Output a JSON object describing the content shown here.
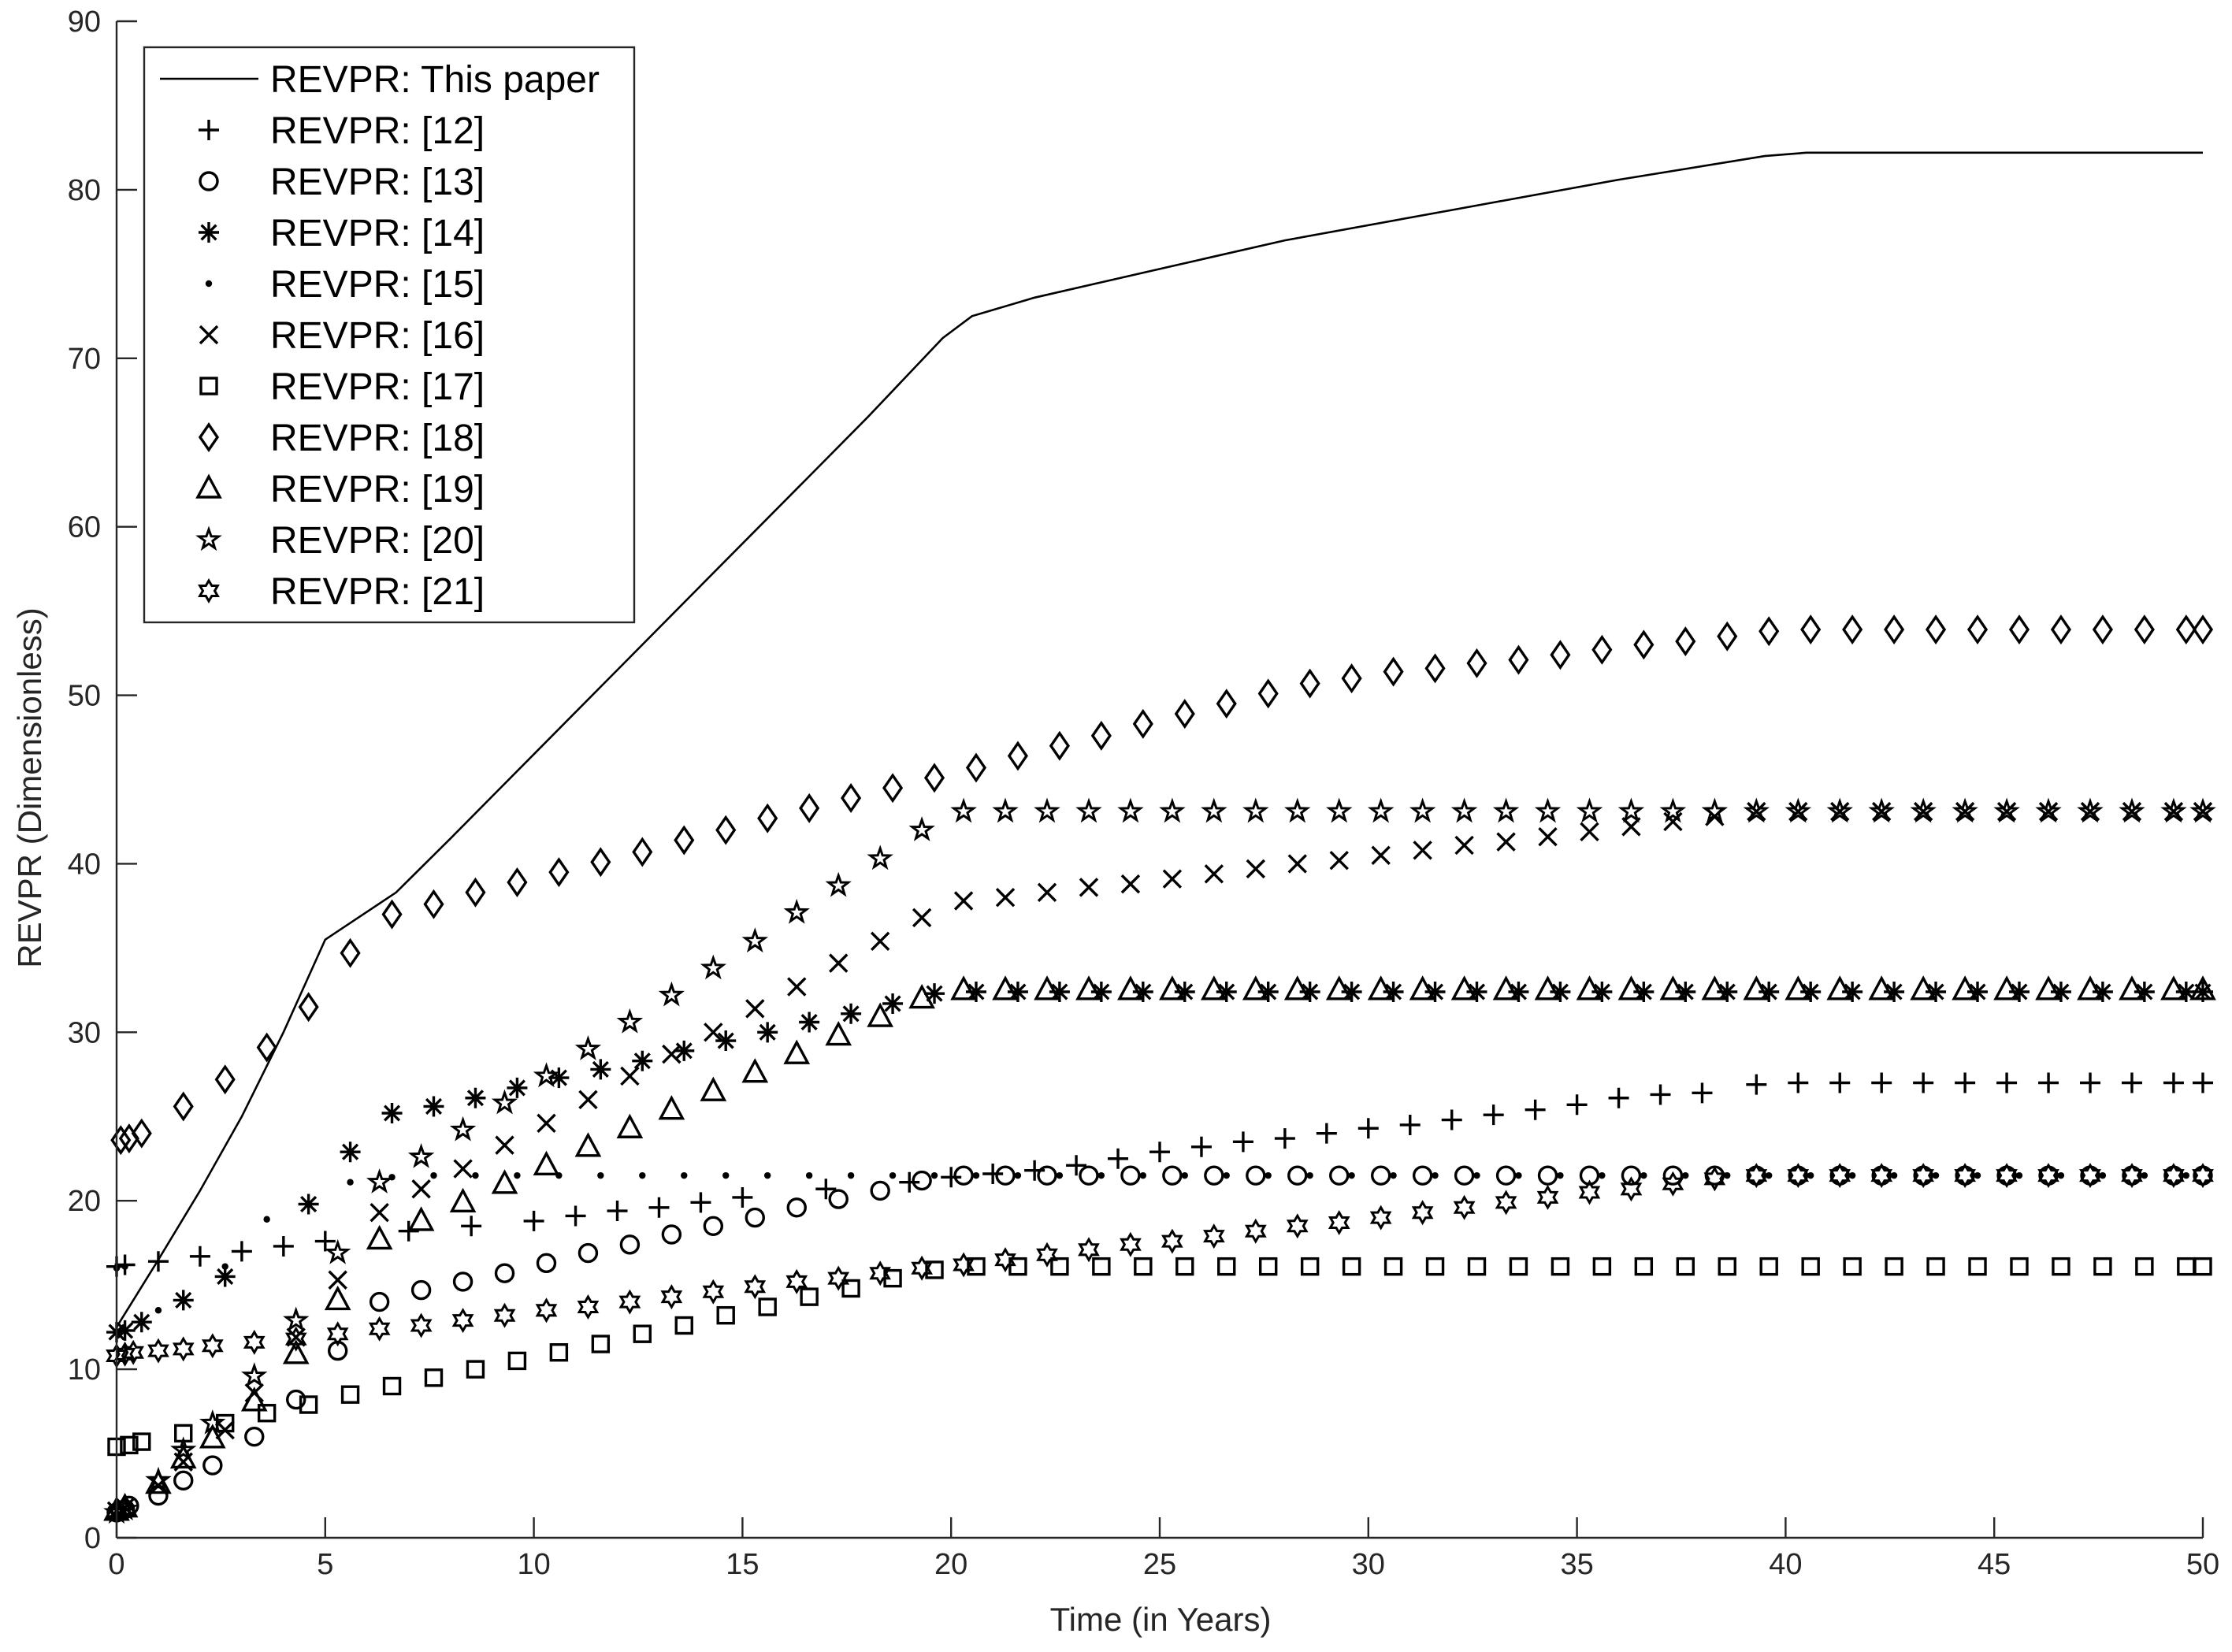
{
  "chart_data": {
    "type": "line",
    "title": "",
    "xlabel": "Time (in Years)",
    "ylabel": "REVPR (Dimensionless)",
    "xlim": [
      0,
      50
    ],
    "ylim": [
      0,
      90
    ],
    "xticks": [
      0,
      5,
      10,
      15,
      20,
      25,
      30,
      35,
      40,
      45,
      50
    ],
    "yticks": [
      0,
      10,
      20,
      30,
      40,
      50,
      60,
      70,
      80,
      90
    ],
    "grid": false,
    "legend_position": "top-left",
    "series": [
      {
        "name": "REVPR: This paper",
        "marker": "line",
        "x": [
          0,
          1,
          2,
          3,
          4,
          5,
          6.7,
          8,
          10,
          12,
          14,
          16,
          18,
          19.8,
          20.5,
          22,
          25,
          28,
          32,
          36,
          39.5,
          40.5,
          50
        ],
        "y": [
          12.5,
          16.5,
          20.6,
          25,
          30,
          35.5,
          38.3,
          41.5,
          46.5,
          51.5,
          56.5,
          61.5,
          66.5,
          71.2,
          72.5,
          73.6,
          75.3,
          77,
          78.8,
          80.6,
          82,
          82.2,
          82.2
        ]
      },
      {
        "name": "REVPR: [12]",
        "marker": "plus",
        "x": [
          0,
          0.2,
          1,
          2,
          3,
          4,
          5,
          7,
          8.5,
          10,
          11,
          12,
          13,
          14,
          15,
          17,
          19,
          20,
          21,
          22,
          23,
          24,
          25,
          26,
          27,
          28,
          29,
          30,
          31,
          32,
          33,
          34,
          35,
          36,
          37,
          38,
          39.3,
          40.3,
          41.3,
          42.3,
          43.3,
          44.3,
          45.3,
          46.3,
          47.3,
          48.3,
          49.3,
          50
        ],
        "y": [
          16.1,
          16.2,
          16.4,
          16.7,
          17,
          17.3,
          17.6,
          18.2,
          18.5,
          18.8,
          19.1,
          19.4,
          19.6,
          19.9,
          20.2,
          20.7,
          21.1,
          21.4,
          21.6,
          21.8,
          22.1,
          22.5,
          22.9,
          23.2,
          23.5,
          23.7,
          24,
          24.3,
          24.5,
          24.8,
          25.1,
          25.4,
          25.7,
          26.1,
          26.3,
          26.4,
          26.9,
          27,
          27,
          27,
          27,
          27,
          27,
          27,
          27,
          27,
          27,
          27
        ]
      },
      {
        "name": "REVPR: [13]",
        "marker": "circle",
        "x": [
          0,
          0.1,
          0.2,
          0.3,
          1,
          1.6,
          2.3,
          3.3,
          4.3,
          5.3,
          6.3,
          7.3,
          8.3,
          9.3,
          10.3,
          11.3,
          12.3,
          13.3,
          14.3,
          15.3,
          16.3,
          17.3,
          18.3,
          19.3,
          20.3,
          21.3,
          22.3,
          23.3,
          24.3,
          25.3,
          26.3,
          27.3,
          28.3,
          29.3,
          30.3,
          31.3,
          32.3,
          33.3,
          34.3,
          35.3,
          36.3,
          37.3,
          38.3,
          39.3,
          40.3,
          41.3,
          42.3,
          43.3,
          44.3,
          45.3,
          46.3,
          47.3,
          48.3,
          49.3,
          50
        ],
        "y": [
          1.5,
          1.6,
          1.7,
          1.9,
          2.5,
          3.4,
          4.3,
          6,
          8.2,
          11.1,
          14,
          14.7,
          15.2,
          15.7,
          16.3,
          16.9,
          17.4,
          18,
          18.5,
          19,
          19.6,
          20.1,
          20.6,
          21.2,
          21.5,
          21.5,
          21.5,
          21.5,
          21.5,
          21.5,
          21.5,
          21.5,
          21.5,
          21.5,
          21.5,
          21.5,
          21.5,
          21.5,
          21.5,
          21.5,
          21.5,
          21.5,
          21.5,
          21.5,
          21.5,
          21.5,
          21.5,
          21.5,
          21.5,
          21.5,
          21.5,
          21.5,
          21.5,
          21.5,
          21.5
        ]
      },
      {
        "name": "REVPR: [14]",
        "marker": "asterisk",
        "x": [
          0,
          0.2,
          0.6,
          1.6,
          2.6,
          4.6,
          5.6,
          6.6,
          7.6,
          8.6,
          9.6,
          10.6,
          11.6,
          12.6,
          13.6,
          14.6,
          15.6,
          16.6,
          17.6,
          18.6,
          19.6,
          20.6,
          21.6,
          22.6,
          23.6,
          24.6,
          25.6,
          26.6,
          27.6,
          28.6,
          29.6,
          30.6,
          31.6,
          32.6,
          33.6,
          34.6,
          35.6,
          36.6,
          37.6,
          38.6,
          39.6,
          40.6,
          41.6,
          42.6,
          43.6,
          44.6,
          45.6,
          46.6,
          47.6,
          48.6,
          49.6,
          50
        ],
        "y": [
          12.2,
          12.3,
          12.8,
          14.1,
          15.5,
          19.8,
          22.9,
          25.2,
          25.6,
          26.1,
          26.7,
          27.3,
          27.8,
          28.3,
          28.9,
          29.5,
          30,
          30.6,
          31.1,
          31.7,
          32.3,
          32.4,
          32.4,
          32.4,
          32.4,
          32.4,
          32.4,
          32.4,
          32.4,
          32.4,
          32.4,
          32.4,
          32.4,
          32.4,
          32.4,
          32.4,
          32.4,
          32.4,
          32.4,
          32.4,
          32.4,
          32.4,
          32.4,
          32.4,
          32.4,
          32.4,
          32.4,
          32.4,
          32.4,
          32.4,
          32.4,
          32.4
        ]
      },
      {
        "name": "REVPR: [15]",
        "marker": "dot",
        "x": [
          0,
          0.2,
          1,
          2.6,
          3.6,
          5.6,
          6.6,
          7.6,
          8.6,
          9.6,
          10.6,
          11.6,
          12.6,
          13.6,
          14.6,
          15.6,
          16.6,
          17.6,
          18.6,
          19.6,
          20.6,
          21.6,
          22.6,
          23.6,
          24.6,
          25.6,
          26.6,
          27.6,
          28.6,
          29.6,
          30.6,
          31.6,
          32.6,
          33.6,
          34.6,
          35.6,
          36.6,
          37.6,
          38.6,
          39.6,
          40.6,
          41.6,
          42.6,
          43.6,
          44.6,
          45.6,
          46.6,
          47.6,
          48.6,
          49.6
        ],
        "y": [
          16,
          16.1,
          13.5,
          16.1,
          18.9,
          21.1,
          21.4,
          21.5,
          21.5,
          21.5,
          21.5,
          21.5,
          21.5,
          21.5,
          21.5,
          21.5,
          21.5,
          21.5,
          21.5,
          21.5,
          21.5,
          21.5,
          21.5,
          21.5,
          21.5,
          21.5,
          21.5,
          21.5,
          21.5,
          21.5,
          21.5,
          21.5,
          21.5,
          21.5,
          21.5,
          21.5,
          21.5,
          21.5,
          21.5,
          21.5,
          21.5,
          21.5,
          21.5,
          21.5,
          21.5,
          21.5,
          21.5,
          21.5,
          21.5,
          21.5
        ]
      },
      {
        "name": "REVPR: [16]",
        "marker": "x",
        "x": [
          0,
          0.2,
          1,
          1.6,
          2.6,
          3.3,
          4.3,
          5.3,
          6.3,
          7.3,
          8.3,
          9.3,
          10.3,
          11.3,
          12.3,
          13.3,
          14.3,
          15.3,
          16.3,
          17.3,
          18.3,
          19.3,
          20.3,
          21.3,
          22.3,
          23.3,
          24.3,
          25.3,
          26.3,
          27.3,
          28.3,
          29.3,
          30.3,
          31.3,
          32.3,
          33.3,
          34.3,
          35.3,
          36.3,
          37.3,
          38.3,
          39.3,
          40.3,
          41.3,
          42.3,
          43.3,
          44.3,
          45.3,
          46.3,
          47.3,
          48.3,
          49.3,
          50
        ],
        "y": [
          1.6,
          1.8,
          3.1,
          4.5,
          6.4,
          8.6,
          11.9,
          15.3,
          19.3,
          20.7,
          21.9,
          23.3,
          24.6,
          26,
          27.4,
          28.7,
          30,
          31.4,
          32.7,
          34.1,
          35.4,
          36.8,
          37.8,
          38,
          38.3,
          38.6,
          38.8,
          39.1,
          39.4,
          39.7,
          40,
          40.2,
          40.5,
          40.8,
          41.1,
          41.3,
          41.6,
          41.9,
          42.2,
          42.5,
          42.8,
          43.1,
          43.1,
          43.1,
          43.1,
          43.1,
          43.1,
          43.1,
          43.1,
          43.1,
          43.1,
          43.1,
          43.1
        ]
      },
      {
        "name": "REVPR: [17]",
        "marker": "square",
        "x": [
          0,
          0.3,
          0.6,
          1.6,
          2.6,
          3.6,
          4.6,
          5.6,
          6.6,
          7.6,
          8.6,
          9.6,
          10.6,
          11.6,
          12.6,
          13.6,
          14.6,
          15.6,
          16.6,
          17.6,
          18.6,
          19.6,
          20.6,
          21.6,
          22.6,
          23.6,
          24.6,
          25.6,
          26.6,
          27.6,
          28.6,
          29.6,
          30.6,
          31.6,
          32.6,
          33.6,
          34.6,
          35.6,
          36.6,
          37.6,
          38.6,
          39.6,
          40.6,
          41.6,
          42.6,
          43.6,
          44.6,
          45.6,
          46.6,
          47.6,
          48.6,
          49.6,
          50
        ],
        "y": [
          5.4,
          5.5,
          5.7,
          6.2,
          6.8,
          7.4,
          7.9,
          8.5,
          9,
          9.5,
          10,
          10.5,
          11,
          11.5,
          12.1,
          12.6,
          13.2,
          13.7,
          14.3,
          14.8,
          15.4,
          15.9,
          16.1,
          16.1,
          16.1,
          16.1,
          16.1,
          16.1,
          16.1,
          16.1,
          16.1,
          16.1,
          16.1,
          16.1,
          16.1,
          16.1,
          16.1,
          16.1,
          16.1,
          16.1,
          16.1,
          16.1,
          16.1,
          16.1,
          16.1,
          16.1,
          16.1,
          16.1,
          16.1,
          16.1,
          16.1,
          16.1,
          16.1
        ]
      },
      {
        "name": "REVPR: [18]",
        "marker": "diamond",
        "x": [
          0.1,
          0.3,
          0.6,
          1.6,
          2.6,
          3.6,
          4.6,
          5.6,
          6.6,
          7.6,
          8.6,
          9.6,
          10.6,
          11.6,
          12.6,
          13.6,
          14.6,
          15.6,
          16.6,
          17.6,
          18.6,
          19.6,
          20.6,
          21.6,
          22.6,
          23.6,
          24.6,
          25.6,
          26.6,
          27.6,
          28.6,
          29.6,
          30.6,
          31.6,
          32.6,
          33.6,
          34.6,
          35.6,
          36.6,
          37.6,
          38.6,
          39.6,
          40.6,
          41.6,
          42.6,
          43.6,
          44.6,
          45.6,
          46.6,
          47.6,
          48.6,
          49.6,
          50
        ],
        "y": [
          23.6,
          23.7,
          24,
          25.6,
          27.2,
          29.1,
          31.5,
          34.7,
          37,
          37.6,
          38.3,
          38.9,
          39.5,
          40.1,
          40.7,
          41.4,
          42,
          42.7,
          43.3,
          43.9,
          44.5,
          45.1,
          45.7,
          46.4,
          47,
          47.6,
          48.3,
          48.9,
          49.5,
          50.1,
          50.7,
          51,
          51.4,
          51.6,
          51.9,
          52.1,
          52.4,
          52.7,
          53,
          53.2,
          53.5,
          53.8,
          53.9,
          53.9,
          53.9,
          53.9,
          53.9,
          53.9,
          53.9,
          53.9,
          53.9,
          53.9,
          53.9
        ]
      },
      {
        "name": "REVPR: [19]",
        "marker": "triangle",
        "x": [
          0,
          0.2,
          1,
          1.6,
          2.3,
          3.3,
          4.3,
          5.3,
          6.3,
          7.3,
          8.3,
          9.3,
          10.3,
          11.3,
          12.3,
          13.3,
          14.3,
          15.3,
          16.3,
          17.3,
          18.3,
          19.3,
          20.3,
          21.3,
          22.3,
          23.3,
          24.3,
          25.3,
          26.3,
          27.3,
          28.3,
          29.3,
          30.3,
          31.3,
          32.3,
          33.3,
          34.3,
          35.3,
          36.3,
          37.3,
          38.3,
          39.3,
          40.3,
          41.3,
          42.3,
          43.3,
          44.3,
          45.3,
          46.3,
          47.3,
          48.3,
          49.3,
          50
        ],
        "y": [
          1.6,
          1.8,
          3.2,
          4.7,
          5.9,
          8.1,
          10.9,
          14.1,
          17.7,
          18.8,
          19.9,
          21,
          22.1,
          23.2,
          24.3,
          25.4,
          26.5,
          27.6,
          28.7,
          29.8,
          30.9,
          32,
          32.5,
          32.5,
          32.5,
          32.5,
          32.5,
          32.5,
          32.5,
          32.5,
          32.5,
          32.5,
          32.5,
          32.5,
          32.5,
          32.5,
          32.5,
          32.5,
          32.5,
          32.5,
          32.5,
          32.5,
          32.5,
          32.5,
          32.5,
          32.5,
          32.5,
          32.5,
          32.5,
          32.5,
          32.5,
          32.5,
          32.5
        ]
      },
      {
        "name": "REVPR: [20]",
        "marker": "pentagram",
        "x": [
          0,
          0.2,
          1,
          1.6,
          2.3,
          3.3,
          4.3,
          5.3,
          6.3,
          7.3,
          8.3,
          9.3,
          10.3,
          11.3,
          12.3,
          13.3,
          14.3,
          15.3,
          16.3,
          17.3,
          18.3,
          19.3,
          20.3,
          21.3,
          22.3,
          23.3,
          24.3,
          25.3,
          26.3,
          27.3,
          28.3,
          29.3,
          30.3,
          31.3,
          32.3,
          33.3,
          34.3,
          35.3,
          36.3,
          37.3,
          38.3,
          39.3,
          40.3,
          41.3,
          42.3,
          43.3,
          44.3,
          45.3,
          46.3,
          47.3,
          48.3,
          49.3,
          50
        ],
        "y": [
          1.5,
          1.7,
          3.4,
          5.2,
          6.8,
          9.6,
          12.9,
          16.9,
          21.1,
          22.6,
          24.2,
          25.8,
          27.4,
          29,
          30.6,
          32.2,
          33.8,
          35.4,
          37.1,
          38.7,
          40.3,
          42,
          43.1,
          43.1,
          43.1,
          43.1,
          43.1,
          43.1,
          43.1,
          43.1,
          43.1,
          43.1,
          43.1,
          43.1,
          43.1,
          43.1,
          43.1,
          43.1,
          43.1,
          43.1,
          43.1,
          43.1,
          43.1,
          43.1,
          43.1,
          43.1,
          43.1,
          43.1,
          43.1,
          43.1,
          43.1,
          43.1,
          43.1
        ]
      },
      {
        "name": "REVPR: [21]",
        "marker": "hexagram",
        "x": [
          0,
          0.2,
          0.4,
          1,
          1.6,
          2.3,
          3.3,
          4.3,
          5.3,
          6.3,
          7.3,
          8.3,
          9.3,
          10.3,
          11.3,
          12.3,
          13.3,
          14.3,
          15.3,
          16.3,
          17.3,
          18.3,
          19.3,
          20.3,
          21.3,
          22.3,
          23.3,
          24.3,
          25.3,
          26.3,
          27.3,
          28.3,
          29.3,
          30.3,
          31.3,
          32.3,
          33.3,
          34.3,
          35.3,
          36.3,
          37.3,
          38.3,
          39.3,
          40.3,
          41.3,
          42.3,
          43.3,
          44.3,
          45.3,
          46.3,
          47.3,
          48.3,
          49.3,
          50
        ],
        "y": [
          10.8,
          10.9,
          11,
          11.1,
          11.2,
          11.4,
          11.6,
          11.8,
          12.1,
          12.4,
          12.6,
          12.9,
          13.2,
          13.5,
          13.7,
          14,
          14.3,
          14.6,
          14.9,
          15.2,
          15.4,
          15.7,
          16,
          16.2,
          16.5,
          16.8,
          17.1,
          17.4,
          17.6,
          17.9,
          18.2,
          18.5,
          18.7,
          19,
          19.3,
          19.6,
          19.9,
          20.2,
          20.5,
          20.7,
          21,
          21.3,
          21.5,
          21.5,
          21.5,
          21.5,
          21.5,
          21.5,
          21.5,
          21.5,
          21.5,
          21.5,
          21.5,
          21.5
        ]
      }
    ]
  }
}
